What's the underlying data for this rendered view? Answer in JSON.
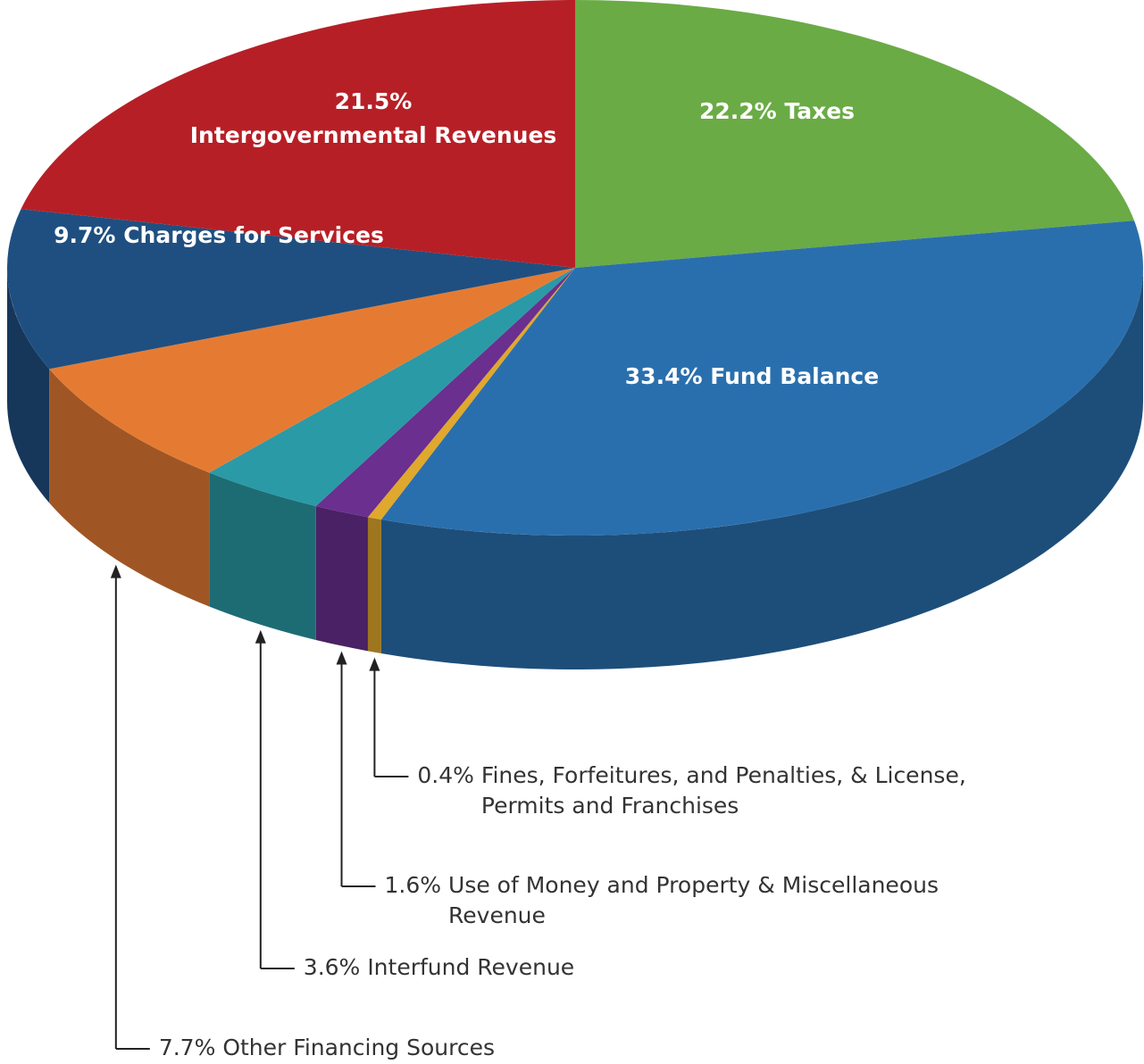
{
  "chart_data": {
    "type": "pie",
    "categories": [
      "Taxes",
      "Fund Balance",
      "Fines, Forfeitures, and Penalties, & License, Permits and Franchises",
      "Use of Money and Property & Miscellaneous Revenue",
      "Interfund Revenue",
      "Other Financing Sources",
      "Charges for Services",
      "Intergovernmental Revenues"
    ],
    "values": [
      22.2,
      33.4,
      0.4,
      1.6,
      3.6,
      7.7,
      9.7,
      21.5
    ],
    "value_labels": [
      "22.2%",
      "33.4%",
      "0.4%",
      "1.6%",
      "3.6%",
      "7.7%",
      "9.7%",
      "21.5%"
    ],
    "colors": [
      "#6aab45",
      "#2a6fad",
      "#e0a82c",
      "#6a2f8f",
      "#2a9aa6",
      "#e57b33",
      "#1f4f80",
      "#b71f26"
    ]
  }
}
